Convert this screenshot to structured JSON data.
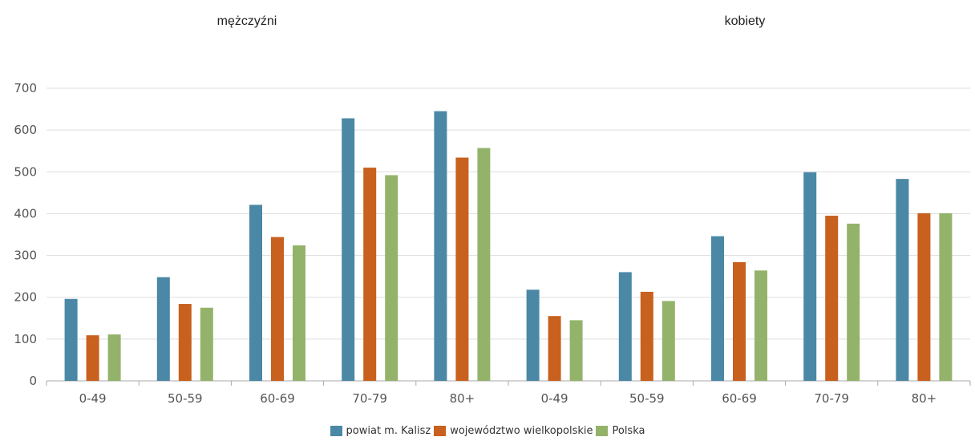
{
  "chart_data": {
    "type": "bar",
    "groups": [
      {
        "title": "mężczyźni",
        "categories": [
          "0-49",
          "50-59",
          "60-69",
          "70-79",
          "80+"
        ]
      },
      {
        "title": "kobiety",
        "categories": [
          "0-49",
          "50-59",
          "60-69",
          "70-79",
          "80+"
        ]
      }
    ],
    "categories": [
      "0-49",
      "50-59",
      "60-69",
      "70-79",
      "80+",
      "0-49",
      "50-59",
      "60-69",
      "70-79",
      "80+"
    ],
    "series": [
      {
        "name": "powiat m. Kalisz",
        "color": "#4a88a6",
        "values": [
          196,
          248,
          421,
          628,
          645,
          218,
          260,
          346,
          499,
          483
        ]
      },
      {
        "name": "województwo wielkopolskie",
        "color": "#c8601e",
        "values": [
          109,
          184,
          344,
          510,
          534,
          155,
          213,
          284,
          395,
          401
        ]
      },
      {
        "name": "Polska",
        "color": "#94b36a",
        "values": [
          111,
          175,
          324,
          492,
          557,
          145,
          191,
          264,
          376,
          401
        ]
      }
    ],
    "yticks": [
      0,
      100,
      200,
      300,
      400,
      500,
      600,
      700
    ],
    "ylim": [
      0,
      700
    ],
    "grid": true,
    "legend_position": "bottom-center"
  }
}
